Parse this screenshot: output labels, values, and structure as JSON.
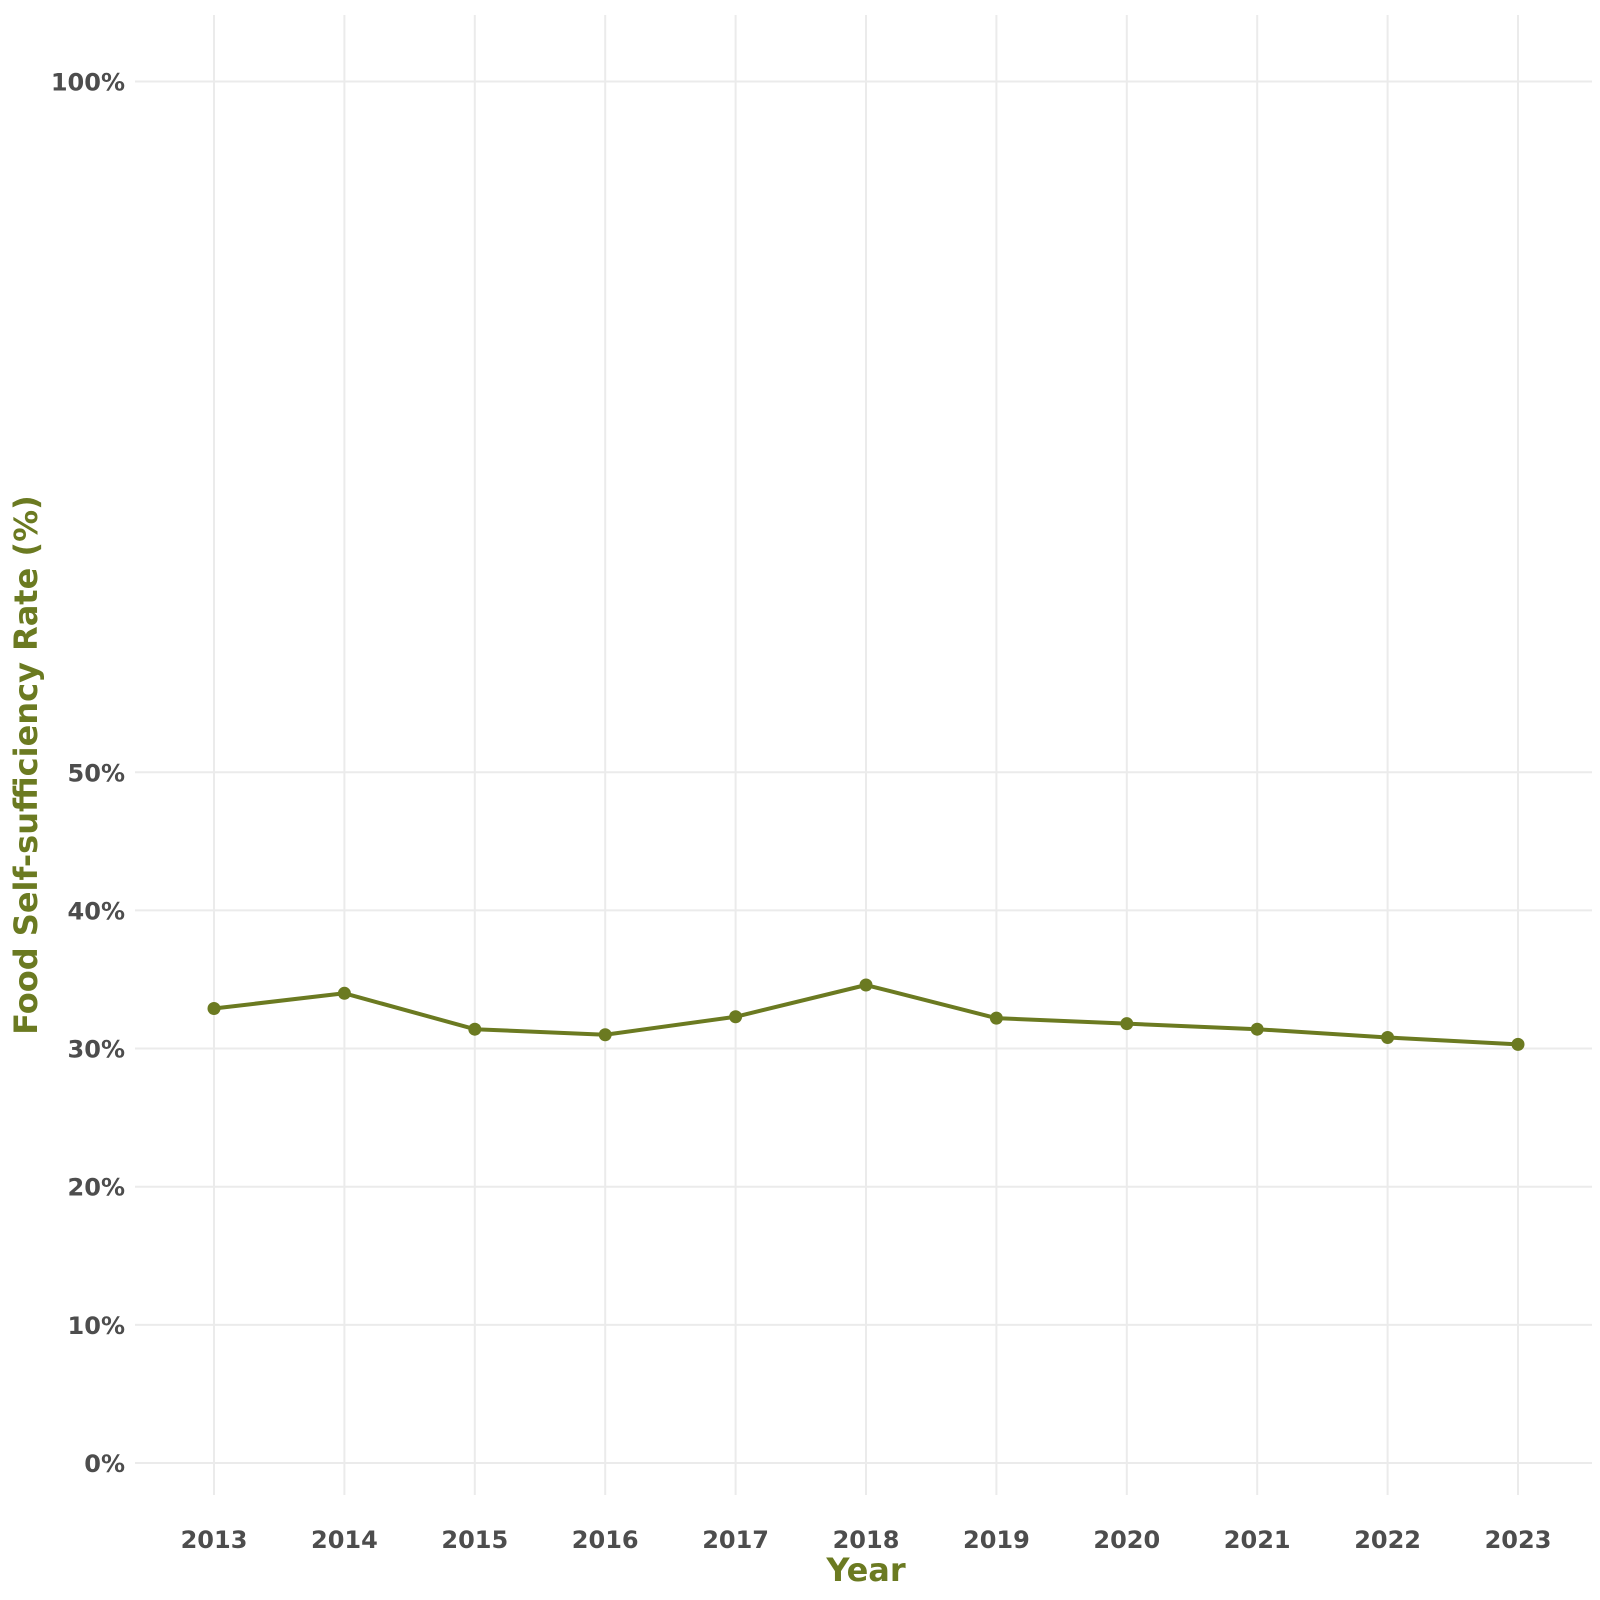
{
  "chart_data": {
    "type": "line",
    "xlabel": "Year",
    "ylabel": "Food Self-sufficiency Rate (%)",
    "x": [
      2013,
      2014,
      2015,
      2016,
      2017,
      2018,
      2019,
      2020,
      2021,
      2022,
      2023
    ],
    "series": [
      {
        "values": [
          32.9,
          34.0,
          31.4,
          31.0,
          32.3,
          34.6,
          32.2,
          31.8,
          31.4,
          30.8,
          30.3
        ]
      }
    ],
    "y_ticks": [
      0,
      10,
      20,
      30,
      40,
      50,
      100
    ],
    "y_tick_labels": [
      "0%",
      "10%",
      "20%",
      "30%",
      "40%",
      "50%",
      "100%"
    ],
    "ylim": [
      0,
      100
    ],
    "grid": true,
    "line_color": "#6b7a21",
    "axis_title_color": "#6b7a21",
    "tick_label_color": "#4d4d4d"
  }
}
